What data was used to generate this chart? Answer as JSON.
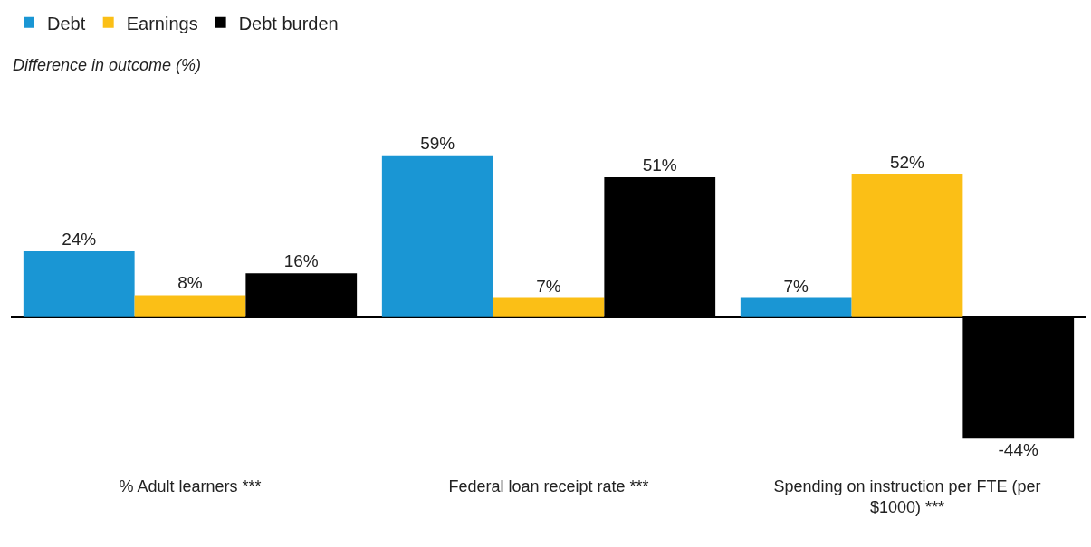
{
  "chart_data": {
    "type": "bar",
    "ylabel": "Difference in outcome (%)",
    "categories": [
      "% Adult learners ***",
      "Federal loan receipt rate ***",
      "Spending on instruction per FTE (per $1000) ***"
    ],
    "series": [
      {
        "name": "Debt",
        "color": "#1a96d4",
        "values": [
          24,
          59,
          7
        ],
        "value_labels": [
          "24%",
          "59%",
          "7%"
        ]
      },
      {
        "name": "Earnings",
        "color": "#fbbf16",
        "values": [
          8,
          7,
          52
        ],
        "value_labels": [
          "8%",
          "7%",
          "52%"
        ]
      },
      {
        "name": "Debt burden",
        "color": "#000000",
        "values": [
          16,
          51,
          -44
        ],
        "value_labels": [
          "16%",
          "51%",
          "-44%"
        ]
      }
    ],
    "legend": "top left"
  }
}
